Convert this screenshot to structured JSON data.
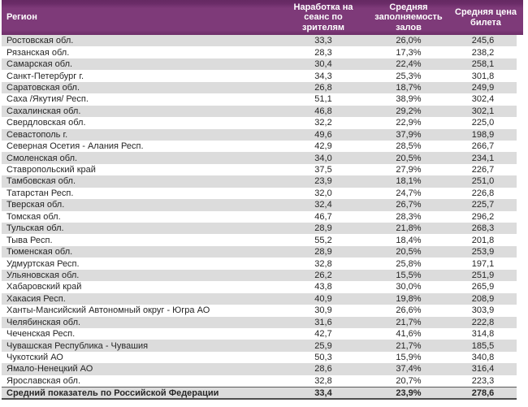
{
  "colors": {
    "header_bg": "#7e3a79",
    "header_bg_dark": "#652963",
    "header_text": "#ffffff",
    "row_alt_bg": "#dcdcdc",
    "row_bg": "#ffffff",
    "body_text": "#262626",
    "summary_border": "#4d4d4d"
  },
  "chart_data": {
    "type": "table",
    "title": "",
    "columns": [
      {
        "label": "Регион"
      },
      {
        "label": "Наработка на\nсеанс по\nзрителям"
      },
      {
        "label": "Средняя\nзаполняемость\nзалов"
      },
      {
        "label": "Средняя цена\nбилета"
      }
    ],
    "rows": [
      {
        "region": "Ростовская обл.",
        "sessions": "33,3",
        "occupancy": "26,0%",
        "price": "245,6"
      },
      {
        "region": "Рязанская обл.",
        "sessions": "28,3",
        "occupancy": "17,3%",
        "price": "238,2"
      },
      {
        "region": "Самарская обл.",
        "sessions": "30,4",
        "occupancy": "22,4%",
        "price": "258,1"
      },
      {
        "region": "Санкт-Петербург г.",
        "sessions": "34,3",
        "occupancy": "25,3%",
        "price": "301,8"
      },
      {
        "region": "Саратовская обл.",
        "sessions": "26,8",
        "occupancy": "18,7%",
        "price": "249,9"
      },
      {
        "region": "Саха /Якутия/ Респ.",
        "sessions": "51,1",
        "occupancy": "38,9%",
        "price": "302,4"
      },
      {
        "region": "Сахалинская обл.",
        "sessions": "46,8",
        "occupancy": "29,2%",
        "price": "302,1"
      },
      {
        "region": "Свердловская обл.",
        "sessions": "32,2",
        "occupancy": "22,9%",
        "price": "225,0"
      },
      {
        "region": "Севастополь г.",
        "sessions": "49,6",
        "occupancy": "37,9%",
        "price": "198,9"
      },
      {
        "region": "Северная Осетия - Алания Респ.",
        "sessions": "42,9",
        "occupancy": "28,5%",
        "price": "266,7"
      },
      {
        "region": "Смоленская обл.",
        "sessions": "34,0",
        "occupancy": "20,5%",
        "price": "234,1"
      },
      {
        "region": "Ставропольский край",
        "sessions": "37,5",
        "occupancy": "27,9%",
        "price": "226,7"
      },
      {
        "region": "Тамбовская обл.",
        "sessions": "23,9",
        "occupancy": "18,1%",
        "price": "251,0"
      },
      {
        "region": "Татарстан Респ.",
        "sessions": "32,0",
        "occupancy": "24,7%",
        "price": "226,8"
      },
      {
        "region": "Тверская обл.",
        "sessions": "32,4",
        "occupancy": "26,7%",
        "price": "225,7"
      },
      {
        "region": "Томская обл.",
        "sessions": "46,7",
        "occupancy": "28,3%",
        "price": "296,2"
      },
      {
        "region": "Тульская обл.",
        "sessions": "28,9",
        "occupancy": "21,8%",
        "price": "268,3"
      },
      {
        "region": "Тыва Респ.",
        "sessions": "55,2",
        "occupancy": "18,4%",
        "price": "201,8"
      },
      {
        "region": "Тюменская обл.",
        "sessions": "28,9",
        "occupancy": "20,5%",
        "price": "253,9"
      },
      {
        "region": "Удмуртская Респ.",
        "sessions": "32,8",
        "occupancy": "25,8%",
        "price": "197,1"
      },
      {
        "region": "Ульяновская обл.",
        "sessions": "26,2",
        "occupancy": "15,5%",
        "price": "251,9"
      },
      {
        "region": "Хабаровский край",
        "sessions": "43,8",
        "occupancy": "30,0%",
        "price": "265,9"
      },
      {
        "region": "Хакасия Респ.",
        "sessions": "40,9",
        "occupancy": "19,8%",
        "price": "208,9"
      },
      {
        "region": "Ханты-Мансийский Автономный округ - Югра АО",
        "sessions": "30,9",
        "occupancy": "26,6%",
        "price": "303,9"
      },
      {
        "region": "Челябинская обл.",
        "sessions": "31,6",
        "occupancy": "21,7%",
        "price": "222,8"
      },
      {
        "region": "Чеченская Респ.",
        "sessions": "42,7",
        "occupancy": "41,6%",
        "price": "314,8"
      },
      {
        "region": "Чувашская Республика - Чувашия",
        "sessions": "25,9",
        "occupancy": "21,7%",
        "price": "185,5"
      },
      {
        "region": "Чукотский АО",
        "sessions": "50,3",
        "occupancy": "15,9%",
        "price": "340,8"
      },
      {
        "region": "Ямало-Ненецкий АО",
        "sessions": "28,6",
        "occupancy": "37,4%",
        "price": "316,4"
      },
      {
        "region": "Ярославская обл.",
        "sessions": "32,8",
        "occupancy": "20,7%",
        "price": "223,3"
      }
    ],
    "footer_row": {
      "region": "Средний показатель по Российской Федерации",
      "sessions": "33,4",
      "occupancy": "23,9%",
      "price": "278,6"
    }
  }
}
